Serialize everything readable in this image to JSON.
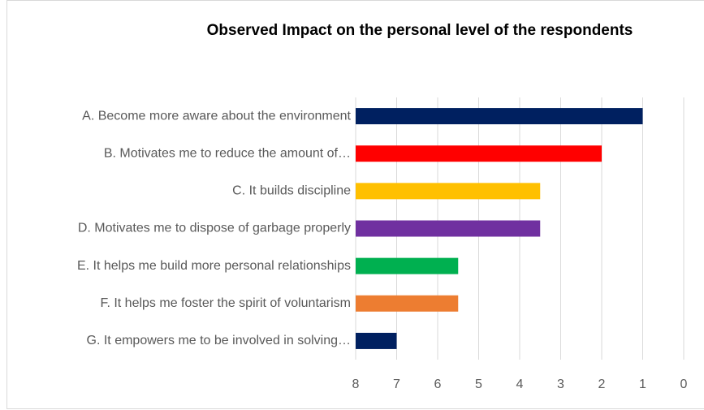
{
  "chart_data": {
    "type": "bar",
    "orientation": "horizontal",
    "title": "Observed Impact on the personal level of the respondents",
    "categories": [
      "A. Become more aware about the environment",
      "B. Motivates me to reduce the amount of…",
      "C. It builds discipline",
      "D. Motivates me to dispose of garbage properly",
      "E. It helps me build more personal relationships",
      "F. It helps me foster the spirit of voluntarism",
      "G. It empowers me to be involved in solving…"
    ],
    "values": [
      1,
      2,
      3.5,
      3.5,
      5.5,
      5.5,
      7
    ],
    "colors": [
      "#002060",
      "#ff0000",
      "#ffc000",
      "#7030a0",
      "#00b050",
      "#ed7d31",
      "#002060"
    ],
    "xlim": [
      8,
      0
    ],
    "xticks": [
      8,
      7,
      6,
      5,
      4,
      3,
      2,
      1,
      0
    ],
    "grid": true
  }
}
